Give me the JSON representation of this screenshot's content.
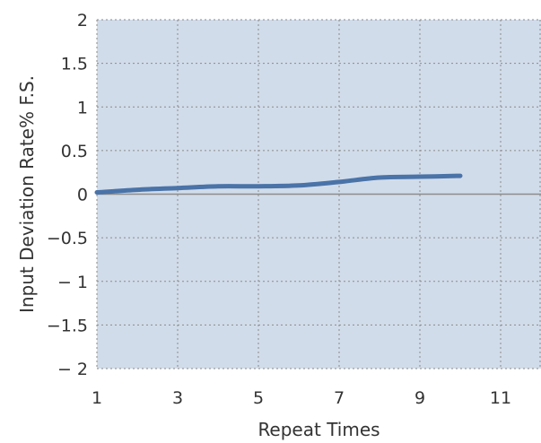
{
  "chart_data": {
    "type": "line",
    "xlabel": "Repeat Times",
    "ylabel": "Input Deviation Rate% F.S.",
    "xlim": [
      1,
      12
    ],
    "ylim": [
      -2,
      2
    ],
    "x_ticks": [
      1,
      3,
      5,
      7,
      9,
      11
    ],
    "x_tick_labels": [
      "1",
      "3",
      "5",
      "7",
      "9",
      "11"
    ],
    "y_ticks": [
      2,
      1.5,
      1,
      0.5,
      0,
      -0.5,
      -1,
      -1.5,
      -2
    ],
    "y_tick_labels": [
      "2",
      "1.5",
      "1",
      "0.5",
      "0",
      "−0.5",
      "− 1",
      "−1.5",
      "− 2"
    ],
    "grid": true,
    "series": [
      {
        "x": [
          1,
          2,
          3,
          4,
          5,
          6,
          7,
          8,
          9,
          10
        ],
        "values": [
          0.02,
          0.05,
          0.07,
          0.09,
          0.09,
          0.1,
          0.14,
          0.19,
          0.2,
          0.21
        ]
      }
    ],
    "colors": {
      "plot_background": "#d1dcea",
      "line": "#4a73a8",
      "grid": "#8a8a8a",
      "zero_line": "#8c8c8c",
      "text": "#333333"
    }
  }
}
